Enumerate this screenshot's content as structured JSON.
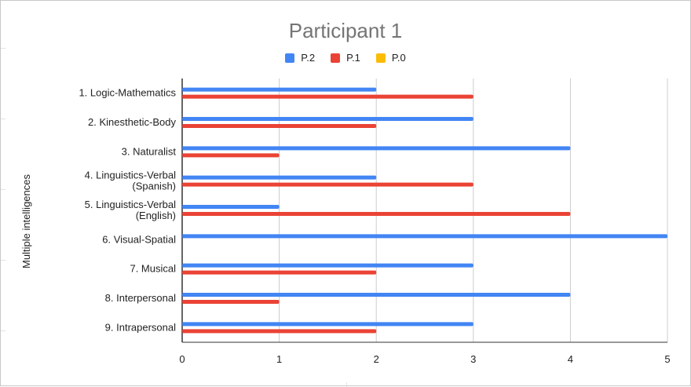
{
  "chart_data": {
    "type": "bar",
    "orientation": "horizontal",
    "title": "Participant 1",
    "ylabel": "Multiple intelligences",
    "xlabel": "",
    "xlim": [
      0,
      5
    ],
    "x_ticks": [
      0,
      1,
      2,
      3,
      4,
      5
    ],
    "grid": true,
    "legend_position": "top",
    "categories": [
      [
        "1.  Logic-Mathematics"
      ],
      [
        "2. Kinesthetic-Body"
      ],
      [
        "3. Naturalist"
      ],
      [
        "4. Linguistics-Verbal",
        "(Spanish)"
      ],
      [
        "5. Linguistics-Verbal",
        "(English)"
      ],
      [
        "6. Visual-Spatial"
      ],
      [
        "7. Musical"
      ],
      [
        "8. Interpersonal"
      ],
      [
        "9. Intrapersonal"
      ]
    ],
    "series": [
      {
        "name": "P.2",
        "color": "#4285f4",
        "values": [
          2,
          3,
          4,
          2,
          1,
          5,
          3,
          4,
          3
        ]
      },
      {
        "name": "P.1",
        "color": "#ea4335",
        "values": [
          3,
          2,
          1,
          3,
          4,
          0,
          2,
          1,
          2
        ]
      },
      {
        "name": "P.0",
        "color": "#fbbc04",
        "values": [
          0,
          0,
          0,
          0,
          0,
          0,
          0,
          0,
          0
        ]
      }
    ]
  }
}
